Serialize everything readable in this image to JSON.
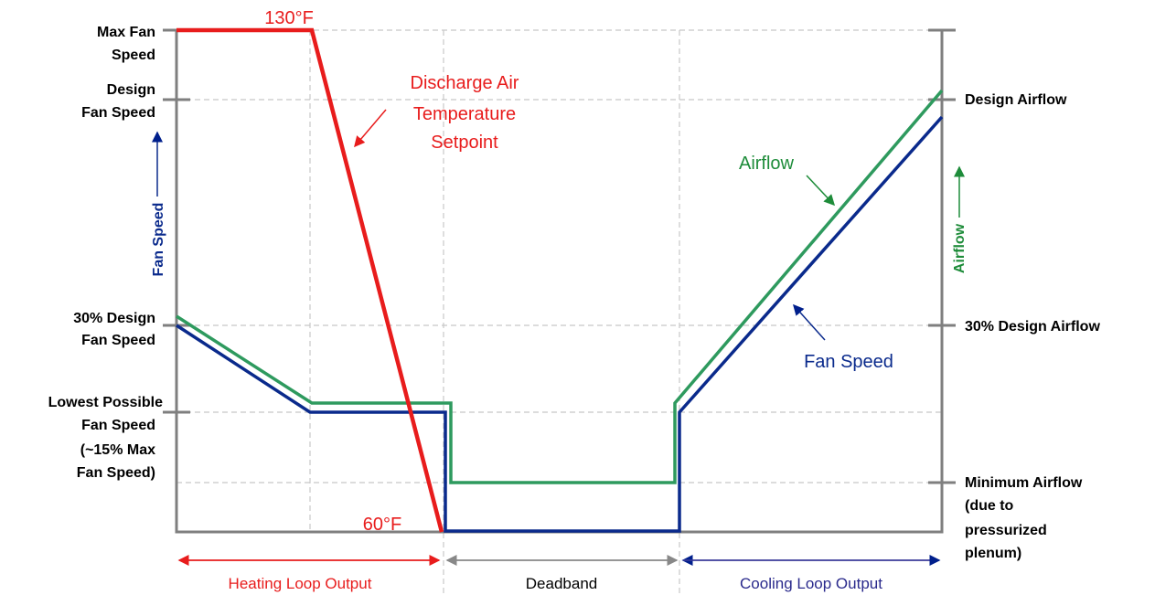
{
  "left_axis": {
    "title": "Fan Speed",
    "labels": [
      {
        "lines": [
          "Max Fan",
          "Speed"
        ]
      },
      {
        "lines": [
          "Design",
          "Fan Speed"
        ]
      },
      {
        "lines": [
          "30% Design",
          "Fan Speed"
        ]
      },
      {
        "lines": [
          "Lowest Possible",
          "Fan Speed",
          "(~15% Max",
          "Fan Speed)"
        ]
      }
    ]
  },
  "right_axis": {
    "title": "Airflow",
    "labels": [
      {
        "lines": [
          "Design Airflow"
        ]
      },
      {
        "lines": [
          "30% Design Airflow"
        ]
      },
      {
        "lines": [
          "Minimum Airflow",
          "(due to",
          "pressurized",
          "plenum)"
        ]
      }
    ]
  },
  "annotations": {
    "temp_high": "130°F",
    "temp_low": "60°F",
    "setpoint": [
      "Discharge Air",
      "Temperature",
      "Setpoint"
    ],
    "airflow": "Airflow",
    "fan_speed": "Fan Speed"
  },
  "regions": [
    "Heating Loop Output",
    "Deadband",
    "Cooling Loop Output"
  ]
}
